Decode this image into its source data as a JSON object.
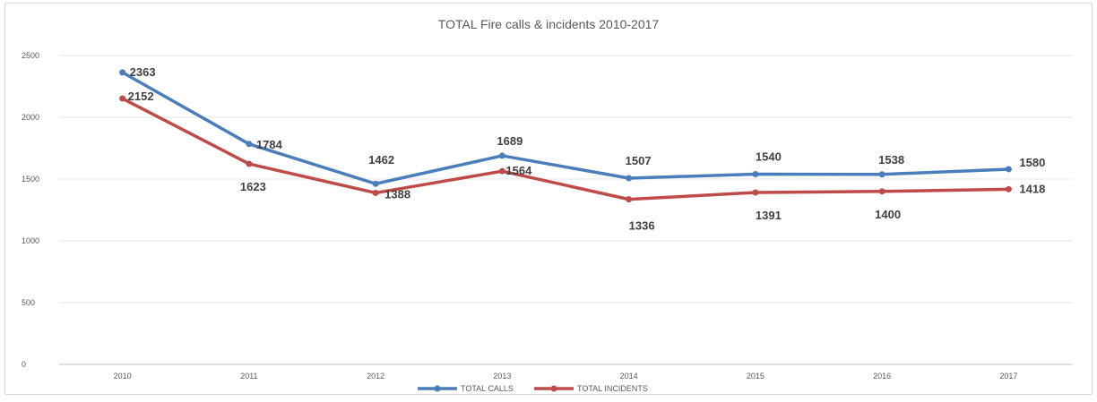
{
  "chart_data": {
    "type": "line",
    "title": "TOTAL Fire calls & incidents 2010-2017",
    "categories": [
      "2010",
      "2011",
      "2012",
      "2013",
      "2014",
      "2015",
      "2016",
      "2017"
    ],
    "ylim": [
      0,
      2500
    ],
    "yticks": [
      0,
      500,
      1000,
      1500,
      2000,
      2500
    ],
    "grid": true,
    "legend_position": "bottom",
    "series": [
      {
        "name": "TOTAL CALLS",
        "color": "#4a7ebb",
        "values": [
          2363,
          1784,
          1462,
          1689,
          1507,
          1540,
          1538,
          1580
        ]
      },
      {
        "name": "TOTAL INCIDENTS",
        "color": "#be4b48",
        "values": [
          2152,
          1623,
          1388,
          1564,
          1336,
          1391,
          1400,
          1418
        ]
      }
    ]
  }
}
